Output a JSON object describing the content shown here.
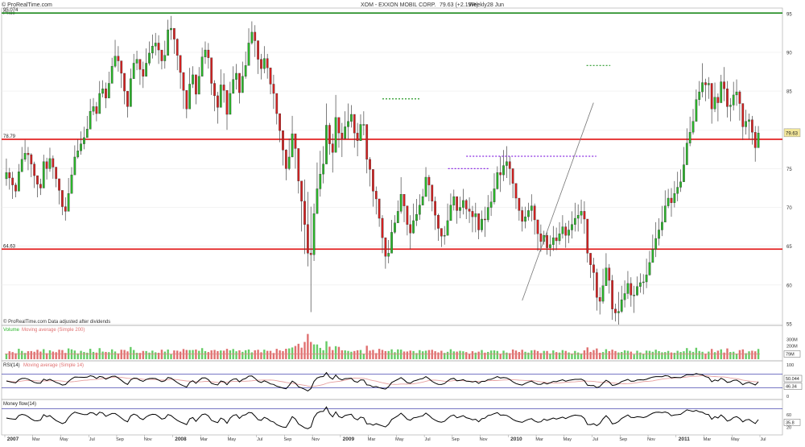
{
  "header": {
    "site": "© ProRealTime.com",
    "title": "XOM - EXXON MOBIL CORP.",
    "quote": "79.63 (+2.19%)",
    "period": "Weekly",
    "date": "28 Jun"
  },
  "colors": {
    "up": "#2ab52a",
    "down": "#d42020",
    "support": "#e01010",
    "resistance_top": "#1e8a1e",
    "dotted_green": "#2a9a2a",
    "dotted_purple": "#8a2be2",
    "vol_up": "#66cc66",
    "vol_down": "#e07070",
    "rsi_ma": "#e6a0a0",
    "bands": "#4a4ab0"
  },
  "chart_data": {
    "type": "candlestick",
    "price_panel": {
      "title": "Price",
      "ylim": [
        55,
        95.5
      ],
      "y_ticks": [
        95,
        90,
        85,
        80,
        75,
        70,
        65,
        60,
        55
      ],
      "levels": [
        {
          "label": "95.074",
          "value": 95.07,
          "kind": "resistance_top"
        },
        {
          "label": "78.79",
          "value": 78.79,
          "kind": "support"
        },
        {
          "label": "64.63",
          "value": 64.63,
          "kind": "support"
        }
      ],
      "current_price_label": "79.63",
      "current_price": 79.63,
      "dotted_lines": [
        {
          "x": [
            27.0,
            29.7
          ],
          "y": 84.0,
          "color": "dotted_green"
        },
        {
          "x": [
            31.7,
            34.6
          ],
          "y": 75.0,
          "color": "dotted_purple"
        },
        {
          "x": [
            33.0,
            42.3
          ],
          "y": 76.6,
          "color": "dotted_purple"
        },
        {
          "x": [
            41.6,
            43.3
          ],
          "y": 88.3,
          "color": "dotted_green"
        }
      ],
      "trendline": {
        "from": [
          37.0,
          58.0
        ],
        "to": [
          42.1,
          83.5
        ]
      },
      "footer_note": "© ProRealTime.com Data adjusted after dividends",
      "weekly_closes": [
        74.5,
        73.8,
        72.9,
        72.1,
        74.6,
        76.2,
        77.0,
        76.8,
        75.6,
        74.1,
        73.0,
        72.5,
        75.9,
        75.0,
        76.3,
        75.2,
        73.7,
        72.2,
        70.1,
        69.5,
        71.8,
        74.2,
        76.5,
        77.3,
        78.2,
        79.0,
        80.1,
        82.4,
        83.0,
        82.1,
        84.7,
        85.3,
        84.1,
        86.0,
        88.2,
        89.5,
        88.9,
        87.3,
        85.0,
        83.0,
        86.6,
        88.6,
        89.1,
        87.8,
        86.9,
        88.6,
        89.9,
        90.8,
        91.2,
        90.3,
        88.9,
        89.6,
        92.9,
        93.1,
        91.7,
        89.6,
        87.4,
        85.1,
        82.7,
        85.9,
        87.1,
        84.6,
        86.9,
        89.4,
        90.3,
        89.3,
        86.0,
        84.4,
        82.9,
        85.8,
        85.1,
        82.0,
        84.7,
        86.5,
        87.3,
        84.8,
        86.9,
        88.3,
        91.2,
        92.6,
        91.5,
        89.1,
        87.9,
        89.2,
        88.0,
        85.9,
        84.7,
        82.1,
        79.9,
        77.4,
        75.0,
        76.5,
        79.5,
        77.6,
        73.4,
        70.8,
        67.8,
        64.1,
        63.9,
        69.2,
        72.4,
        74.3,
        75.6,
        80.6,
        78.2,
        77.1,
        81.6,
        79.6,
        78.9,
        80.4,
        81.1,
        82.0,
        79.6,
        78.6,
        80.7,
        80.7,
        76.2,
        74.9,
        72.1,
        71.1,
        68.6,
        66.1,
        63.7,
        64.1,
        66.8,
        68.0,
        69.5,
        71.7,
        70.2,
        67.8,
        66.7,
        68.3,
        69.1,
        70.3,
        71.4,
        73.9,
        72.9,
        70.8,
        69.0,
        67.3,
        66.3,
        66.4,
        68.3,
        70.3,
        71.4,
        69.6,
        70.0,
        70.9,
        69.8,
        69.5,
        68.8,
        69.2,
        67.1,
        68.5,
        68.4,
        70.0,
        70.7,
        72.4,
        74.5,
        74.2,
        75.4,
        75.9,
        75.0,
        73.1,
        71.2,
        69.6,
        68.2,
        68.8,
        69.6,
        70.2,
        68.4,
        66.6,
        65.6,
        66.4,
        64.8,
        65.2,
        66.1,
        65.7,
        66.6,
        67.5,
        66.4,
        67.1,
        67.8,
        68.6,
        69.0,
        69.5,
        68.5,
        64.1,
        62.6,
        61.6,
        58.4,
        57.9,
        59.9,
        62.2,
        60.6,
        56.9,
        56.4,
        56.6,
        58.1,
        58.9,
        60.2,
        58.7,
        58.7,
        59.8,
        60.3,
        60.4,
        61.3,
        62.9,
        64.6,
        66.0,
        67.1,
        68.1,
        70.2,
        71.2,
        70.6,
        71.8,
        72.6,
        73.3,
        75.5,
        78.3,
        79.7,
        81.1,
        83.9,
        84.9,
        86.1,
        85.8,
        86.0,
        82.7,
        84.2,
        83.5,
        86.2,
        85.3,
        83.0,
        83.2,
        84.5,
        84.9,
        83.4,
        80.4,
        81.1,
        81.3,
        79.7,
        77.7,
        79.6
      ],
      "weekly_highs": [
        76.3,
        75.1,
        74.6,
        73.2,
        75.6,
        77.8,
        78.7,
        77.8,
        77.0,
        75.9,
        74.1,
        73.7,
        76.8,
        76.4,
        77.7,
        76.7,
        75.1,
        73.4,
        71.6,
        71.3,
        73.8,
        75.2,
        78.0,
        78.8,
        79.8,
        80.4,
        81.8,
        84.0,
        84.1,
        83.6,
        86.3,
        86.4,
        86.1,
        87.5,
        89.3,
        91.6,
        90.8,
        88.7,
        87.3,
        84.5,
        87.9,
        89.8,
        90.2,
        89.0,
        88.8,
        90.5,
        91.4,
        92.3,
        92.5,
        92.2,
        90.2,
        91.5,
        94.2,
        94.7,
        93.1,
        91.8,
        89.5,
        86.6,
        84.3,
        88.0,
        88.2,
        86.3,
        88.1,
        90.6,
        91.4,
        91.2,
        87.9,
        86.4,
        84.9,
        87.8,
        87.3,
        83.8,
        86.2,
        88.2,
        88.5,
        87.1,
        88.8,
        90.1,
        93.1,
        94.0,
        93.5,
        91.2,
        89.8,
        90.8,
        89.8,
        87.6,
        87.1,
        84.2,
        81.3,
        79.0,
        77.5,
        78.9,
        81.8,
        79.2,
        75.8,
        72.6,
        73.6,
        72.0,
        70.1,
        70.5,
        75.8,
        77.3,
        77.9,
        83.4,
        80.9,
        79.5,
        84.5,
        81.4,
        80.9,
        82.4,
        83.4,
        83.2,
        81.5,
        80.9,
        82.0,
        82.4,
        78.7,
        76.5,
        74.3,
        72.7,
        70.4,
        69.0,
        66.1,
        65.8,
        68.4,
        69.0,
        70.9,
        73.9,
        71.6,
        69.5,
        69.0,
        70.5,
        71.1,
        71.7,
        72.4,
        75.2,
        74.2,
        72.4,
        71.4,
        69.2,
        67.1,
        67.6,
        70.5,
        71.8,
        72.3,
        71.3,
        71.4,
        72.4,
        71.1,
        71.3,
        70.2,
        70.6,
        69.1,
        69.6,
        70.1,
        71.6,
        72.1,
        74.4,
        75.3,
        76.6,
        77.4,
        77.9,
        76.6,
        74.8,
        72.8,
        71.0,
        70.1,
        70.1,
        70.6,
        71.7,
        70.5,
        67.9,
        67.8,
        67.0,
        66.8,
        66.4,
        67.6,
        67.4,
        68.1,
        69.0,
        68.0,
        68.3,
        69.5,
        70.6,
        70.4,
        71.0,
        70.8,
        67.0,
        64.0,
        63.5,
        62.1,
        59.7,
        62.1,
        64.1,
        62.7,
        61.3,
        57.6,
        59.1,
        59.9,
        60.6,
        61.8,
        61.0,
        59.9,
        61.1,
        61.5,
        61.4,
        63.4,
        64.4,
        66.5,
        68.1,
        68.6,
        70.2,
        72.2,
        72.4,
        72.5,
        73.4,
        74.6,
        74.9,
        77.8,
        80.2,
        81.7,
        82.7,
        85.2,
        86.3,
        88.6,
        86.6,
        86.8,
        84.5,
        86.1,
        84.7,
        87.1,
        88.1,
        86.3,
        84.1,
        86.2,
        86.5,
        85.1,
        83.3,
        82.6,
        82.1,
        81.8,
        80.5,
        80.5
      ],
      "weekly_lows": [
        72.8,
        72.3,
        71.1,
        71.3,
        72.6,
        75.1,
        75.9,
        74.8,
        73.9,
        72.5,
        71.3,
        71.6,
        74.6,
        73.6,
        74.6,
        73.7,
        72.6,
        70.4,
        69.0,
        68.3,
        70.9,
        72.8,
        74.7,
        76.3,
        76.8,
        77.5,
        79.0,
        81.2,
        81.9,
        81.1,
        83.4,
        84.2,
        82.8,
        84.7,
        86.9,
        88.0,
        87.5,
        85.4,
        83.3,
        81.6,
        84.8,
        87.1,
        87.7,
        85.8,
        85.4,
        87.3,
        88.3,
        89.2,
        89.6,
        88.5,
        87.8,
        87.9,
        91.7,
        91.6,
        89.8,
        87.7,
        85.3,
        82.7,
        81.5,
        83.8,
        85.4,
        83.3,
        85.2,
        87.3,
        88.5,
        87.9,
        84.5,
        82.4,
        80.8,
        84.5,
        83.5,
        80.0,
        82.9,
        84.7,
        85.2,
        83.4,
        85.2,
        86.6,
        89.9,
        91.0,
        89.4,
        87.2,
        86.5,
        87.3,
        86.6,
        84.6,
        82.7,
        80.7,
        78.4,
        75.4,
        73.5,
        74.8,
        77.9,
        75.0,
        71.8,
        66.9,
        64.0,
        62.4,
        56.5,
        63.1,
        70.3,
        71.4,
        73.1,
        78.7,
        76.8,
        74.5,
        78.9,
        77.7,
        76.5,
        78.7,
        78.8,
        80.3,
        77.7,
        76.6,
        78.8,
        79.3,
        74.4,
        72.7,
        70.1,
        69.1,
        67.5,
        64.1,
        62.1,
        62.8,
        65.0,
        66.6,
        68.6,
        69.2,
        68.1,
        66.4,
        64.6,
        66.6,
        67.6,
        68.4,
        70.5,
        71.8,
        70.8,
        69.5,
        67.1,
        65.7,
        64.9,
        65.2,
        66.8,
        69.1,
        69.6,
        67.9,
        68.6,
        69.1,
        68.5,
        68.0,
        66.8,
        66.8,
        65.9,
        66.8,
        66.2,
        68.1,
        68.9,
        70.4,
        72.3,
        72.0,
        73.4,
        73.8,
        72.9,
        71.2,
        69.8,
        68.3,
        66.9,
        67.3,
        68.3,
        68.2,
        66.5,
        64.4,
        64.3,
        65.2,
        63.9,
        63.7,
        64.4,
        64.5,
        65.2,
        66.0,
        64.8,
        65.4,
        66.0,
        66.9,
        66.9,
        67.9,
        66.6,
        62.9,
        60.9,
        59.3,
        56.7,
        56.2,
        57.6,
        60.0,
        58.9,
        55.5,
        55.3,
        54.9,
        56.4,
        57.1,
        58.2,
        57.2,
        56.4,
        58.6,
        59.0,
        58.8,
        59.6,
        61.2,
        63.2,
        63.6,
        65.1,
        66.3,
        68.1,
        69.9,
        68.8,
        70.0,
        70.8,
        72.0,
        74.1,
        76.0,
        77.9,
        79.4,
        81.9,
        83.1,
        84.2,
        83.7,
        84.0,
        80.8,
        82.3,
        81.1,
        84.3,
        83.7,
        81.6,
        81.1,
        82.5,
        83.1,
        81.2,
        78.7,
        79.4,
        78.8,
        78.1,
        75.9,
        77.9
      ]
    },
    "volume_panel": {
      "title": "Volume",
      "ma_label": "Moving average (Simple 200)",
      "y_ticks": [
        "300M",
        "200M",
        "100M"
      ],
      "ylim": [
        0,
        400
      ],
      "current_label": "79M",
      "current_value": 79,
      "ma_value": 80
    },
    "rsi_panel": {
      "title": "RSI(14)",
      "ma_label": "Moving average (Simple 14)",
      "ylim": [
        0,
        100
      ],
      "y_ticks": [
        "100",
        "0"
      ],
      "bands": [
        70,
        30
      ],
      "labels": [
        "50.044",
        "46.34"
      ],
      "label_values": [
        50.04,
        46.34
      ]
    },
    "mfi_panel": {
      "title": "Money flow(14)",
      "ylim": [
        0,
        100
      ],
      "y_ticks": [
        "60",
        "40",
        "20"
      ],
      "band": 80,
      "current_label": "35.8",
      "current_value": 35.8
    },
    "x_axis": {
      "labels": [
        "2007",
        "Mar",
        "May",
        "Jul",
        "Sep",
        "Nov",
        "2008",
        "Mar",
        "May",
        "Jul",
        "Sep",
        "Nov",
        "2009",
        "Mar",
        "May",
        "Jul",
        "Sep",
        "Nov",
        "2010",
        "Mar",
        "May",
        "Jul",
        "Sep",
        "Nov",
        "2011",
        "Mar",
        "May",
        "Jul"
      ],
      "month_index": [
        0,
        2,
        4,
        6,
        8,
        10,
        12,
        14,
        16,
        18,
        20,
        22,
        24,
        26,
        28,
        30,
        32,
        34,
        36,
        38,
        40,
        42,
        44,
        46,
        48,
        50,
        52,
        54
      ]
    }
  }
}
